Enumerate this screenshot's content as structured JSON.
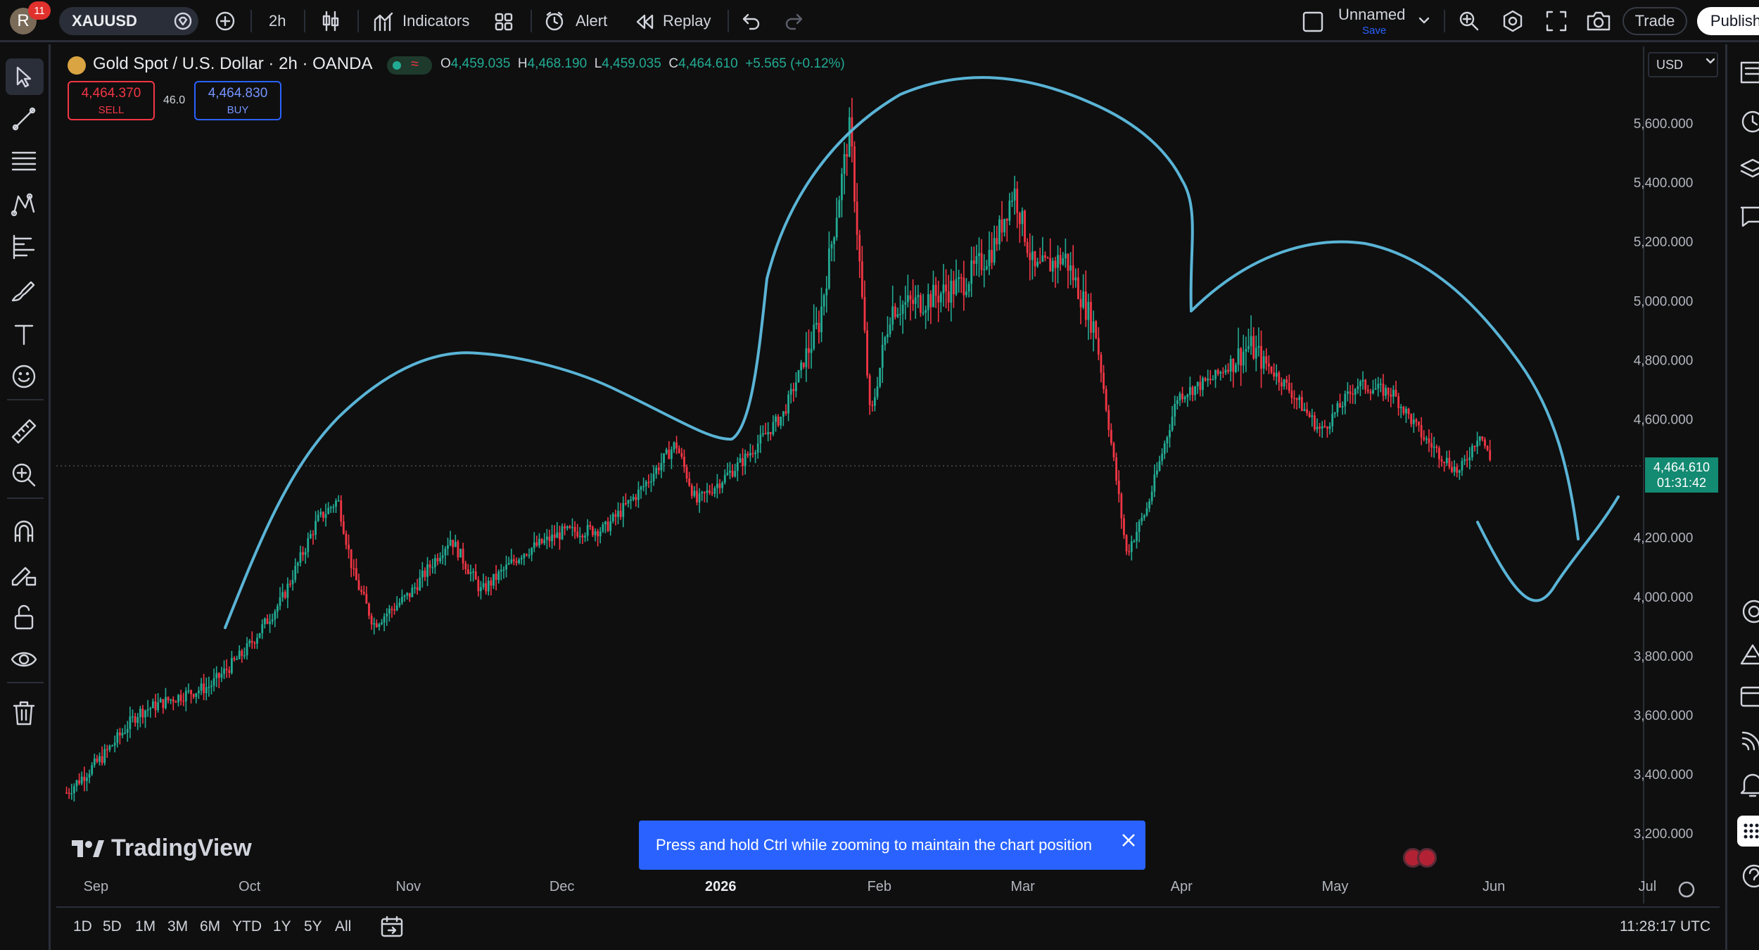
{
  "topbar": {
    "avatar_letter": "R",
    "notification_count": "11",
    "symbol": "XAUUSD",
    "interval": "2h",
    "indicators_label": "Indicators",
    "alert_label": "Alert",
    "replay_label": "Replay",
    "layout_name": "Unnamed",
    "layout_save": "Save",
    "trade_label": "Trade",
    "publish_label": "Publish"
  },
  "legend": {
    "title": "Gold Spot / U.S. Dollar · 2h · OANDA",
    "o_label": "O",
    "o_value": "4,459.035",
    "h_label": "H",
    "h_value": "4,468.190",
    "l_label": "L",
    "l_value": "4,459.035",
    "c_label": "C",
    "c_value": "4,464.610",
    "change": "+5.565 (+0.12%)"
  },
  "quote": {
    "sell_price": "4,464.370",
    "sell_label": "SELL",
    "spread": "46.0",
    "buy_price": "4,464.830",
    "buy_label": "BUY"
  },
  "currency": "USD",
  "price_tag": {
    "price": "4,464.610",
    "countdown": "01:31:42"
  },
  "toast": {
    "message": "Press and hold Ctrl while zooming to maintain the chart position"
  },
  "watermark": "TradingView",
  "bottombar": {
    "ranges": [
      "1D",
      "5D",
      "1M",
      "3M",
      "6M",
      "YTD",
      "1Y",
      "5Y",
      "All"
    ],
    "time": "11:28:17 UTC"
  },
  "colors": {
    "up": "#22ab94",
    "down": "#f23645",
    "drawing": "#5ab4d6",
    "accent": "#2962ff"
  },
  "chart_data": {
    "type": "candlestick",
    "series_name": "XAUUSD 2h",
    "y_ticks": [
      "5,600.000",
      "5,400.000",
      "5,200.000",
      "5,000.000",
      "4,800.000",
      "4,600.000",
      "4,200.000",
      "4,000.000",
      "3,800.000",
      "3,600.000",
      "3,400.000",
      "3,200.000"
    ],
    "x_ticks": [
      "Sep",
      "Oct",
      "Nov",
      "Dec",
      "2026",
      "Feb",
      "Mar",
      "Apr",
      "May",
      "Jun",
      "Jul"
    ],
    "ylim": [
      3100,
      5780
    ],
    "last_price": 4464.61,
    "path_points": [
      [
        "2025-08-29",
        3340
      ],
      [
        "2025-09-05",
        3460
      ],
      [
        "2025-09-12",
        3610
      ],
      [
        "2025-09-19",
        3660
      ],
      [
        "2025-09-26",
        3700
      ],
      [
        "2025-10-03",
        3820
      ],
      [
        "2025-10-10",
        3990
      ],
      [
        "2025-10-17",
        4260
      ],
      [
        "2025-10-21",
        4330
      ],
      [
        "2025-10-24",
        4080
      ],
      [
        "2025-10-28",
        3910
      ],
      [
        "2025-11-04",
        4010
      ],
      [
        "2025-11-12",
        4200
      ],
      [
        "2025-11-18",
        4020
      ],
      [
        "2025-11-26",
        4150
      ],
      [
        "2025-12-04",
        4220
      ],
      [
        "2025-12-12",
        4230
      ],
      [
        "2025-12-19",
        4360
      ],
      [
        "2025-12-26",
        4520
      ],
      [
        "2025-12-30",
        4320
      ],
      [
        "2026-01-08",
        4460
      ],
      [
        "2026-01-16",
        4620
      ],
      [
        "2026-01-23",
        4930
      ],
      [
        "2026-01-29",
        5590
      ],
      [
        "2026-02-02",
        4600
      ],
      [
        "2026-02-06",
        4980
      ],
      [
        "2026-02-12",
        5000
      ],
      [
        "2026-02-20",
        5060
      ],
      [
        "2026-02-26",
        5180
      ],
      [
        "2026-03-02",
        5380
      ],
      [
        "2026-03-06",
        5100
      ],
      [
        "2026-03-12",
        5150
      ],
      [
        "2026-03-18",
        4900
      ],
      [
        "2026-03-24",
        4150
      ],
      [
        "2026-03-28",
        4300
      ],
      [
        "2026-04-03",
        4680
      ],
      [
        "2026-04-10",
        4740
      ],
      [
        "2026-04-17",
        4850
      ],
      [
        "2026-04-24",
        4720
      ],
      [
        "2026-05-01",
        4560
      ],
      [
        "2026-05-08",
        4720
      ],
      [
        "2026-05-15",
        4690
      ],
      [
        "2026-05-21",
        4540
      ],
      [
        "2026-05-28",
        4420
      ],
      [
        "2026-06-01",
        4560
      ],
      [
        "2026-06-03",
        4464
      ]
    ]
  }
}
